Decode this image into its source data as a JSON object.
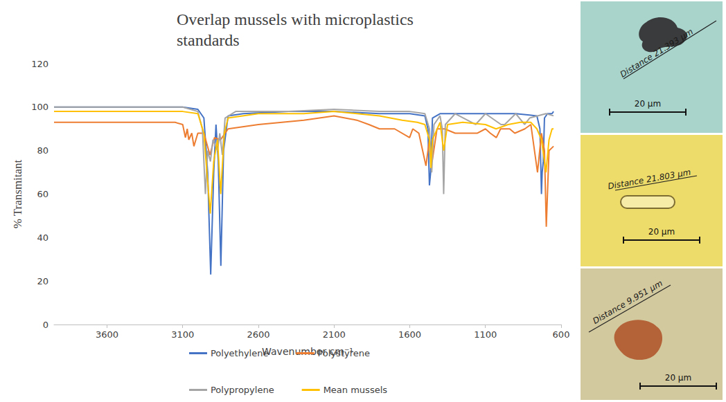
{
  "chart_data": {
    "type": "line",
    "title": "Overlap mussels with microplastics standards",
    "x_label": "Wavenumber cm⁻¹",
    "y_label": "% Transmitant",
    "xlim": [
      3950,
      600
    ],
    "xticks": [
      3600,
      3100,
      2600,
      2100,
      1600,
      1100,
      600
    ],
    "ylim": [
      0,
      120
    ],
    "yticks": [
      0,
      20,
      40,
      60,
      80,
      100,
      120
    ],
    "grid": false,
    "legend": "bottom",
    "series": [
      {
        "name": "Polyethylene",
        "color": "#4472c4",
        "x": [
          3950,
          3600,
          3300,
          3100,
          3000,
          2960,
          2935,
          2915,
          2895,
          2880,
          2865,
          2848,
          2830,
          2800,
          2700,
          2400,
          2100,
          1800,
          1600,
          1500,
          1480,
          1470,
          1462,
          1450,
          1400,
          1300,
          1100,
          900,
          760,
          740,
          730,
          725,
          718,
          710,
          690,
          660,
          650
        ],
        "values": [
          100,
          100,
          100,
          100,
          99,
          95,
          70,
          23,
          70,
          92,
          75,
          27,
          80,
          96,
          97,
          98,
          98,
          97,
          97,
          96,
          90,
          64,
          70,
          95,
          97,
          97,
          97,
          97,
          96,
          90,
          60,
          70,
          75,
          95,
          97,
          97,
          98
        ]
      },
      {
        "name": "Polystyrene",
        "color": "#ed7d31",
        "x": [
          3950,
          3600,
          3300,
          3150,
          3100,
          3082,
          3070,
          3060,
          3040,
          3026,
          3000,
          2960,
          2920,
          2890,
          2850,
          2800,
          2600,
          2300,
          2100,
          1950,
          1870,
          1800,
          1700,
          1601,
          1580,
          1540,
          1493,
          1470,
          1452,
          1420,
          1370,
          1300,
          1180,
          1155,
          1100,
          1068,
          1028,
          1000,
          940,
          906,
          840,
          800,
          756,
          730,
          710,
          698,
          680,
          650
        ],
        "values": [
          93,
          93,
          93,
          93,
          92,
          86,
          90,
          85,
          88,
          82,
          88,
          88,
          78,
          86,
          85,
          90,
          92,
          94,
          96,
          94,
          92,
          90,
          90,
          86,
          90,
          88,
          73,
          85,
          75,
          90,
          90,
          88,
          88,
          88,
          90,
          88,
          86,
          90,
          90,
          88,
          90,
          92,
          70,
          88,
          80,
          45,
          80,
          82
        ]
      },
      {
        "name": "Polypropylene",
        "color": "#a5a5a5",
        "x": [
          3950,
          3600,
          3300,
          3100,
          3000,
          2970,
          2950,
          2935,
          2917,
          2900,
          2870,
          2855,
          2838,
          2820,
          2750,
          2400,
          2100,
          1800,
          1600,
          1500,
          1470,
          1455,
          1440,
          1400,
          1385,
          1376,
          1365,
          1300,
          1165,
          1100,
          997,
          973,
          900,
          841,
          808,
          700,
          650
        ],
        "values": [
          100,
          100,
          100,
          100,
          98,
          90,
          60,
          80,
          75,
          85,
          80,
          88,
          78,
          95,
          98,
          98,
          99,
          98,
          98,
          97,
          90,
          70,
          92,
          96,
          90,
          60,
          92,
          97,
          92,
          97,
          92,
          92,
          97,
          92,
          95,
          97,
          96
        ]
      },
      {
        "name": "Mean mussels",
        "color": "#ffc000",
        "x": [
          3950,
          3600,
          3300,
          3100,
          3000,
          2960,
          2940,
          2918,
          2895,
          2870,
          2849,
          2825,
          2800,
          2600,
          2300,
          2100,
          1800,
          1650,
          1550,
          1500,
          1470,
          1460,
          1450,
          1400,
          1376,
          1350,
          1250,
          1100,
          1030,
          950,
          870,
          800,
          760,
          730,
          720,
          700,
          680,
          660,
          650
        ],
        "values": [
          98,
          98,
          98,
          98,
          97,
          88,
          70,
          51,
          75,
          85,
          60,
          88,
          95,
          97,
          97,
          98,
          96,
          94,
          93,
          92,
          85,
          72,
          85,
          93,
          80,
          92,
          93,
          92,
          90,
          92,
          93,
          93,
          90,
          85,
          80,
          70,
          85,
          90,
          90
        ]
      }
    ]
  },
  "micrographs": [
    {
      "measure": "Distance 21.393 µm",
      "scale_bar": "20 µm"
    },
    {
      "measure": "Distance 21.803 µm",
      "scale_bar": "20 µm"
    },
    {
      "measure": "Distance 9.951 µm",
      "scale_bar": "20 µm"
    }
  ]
}
